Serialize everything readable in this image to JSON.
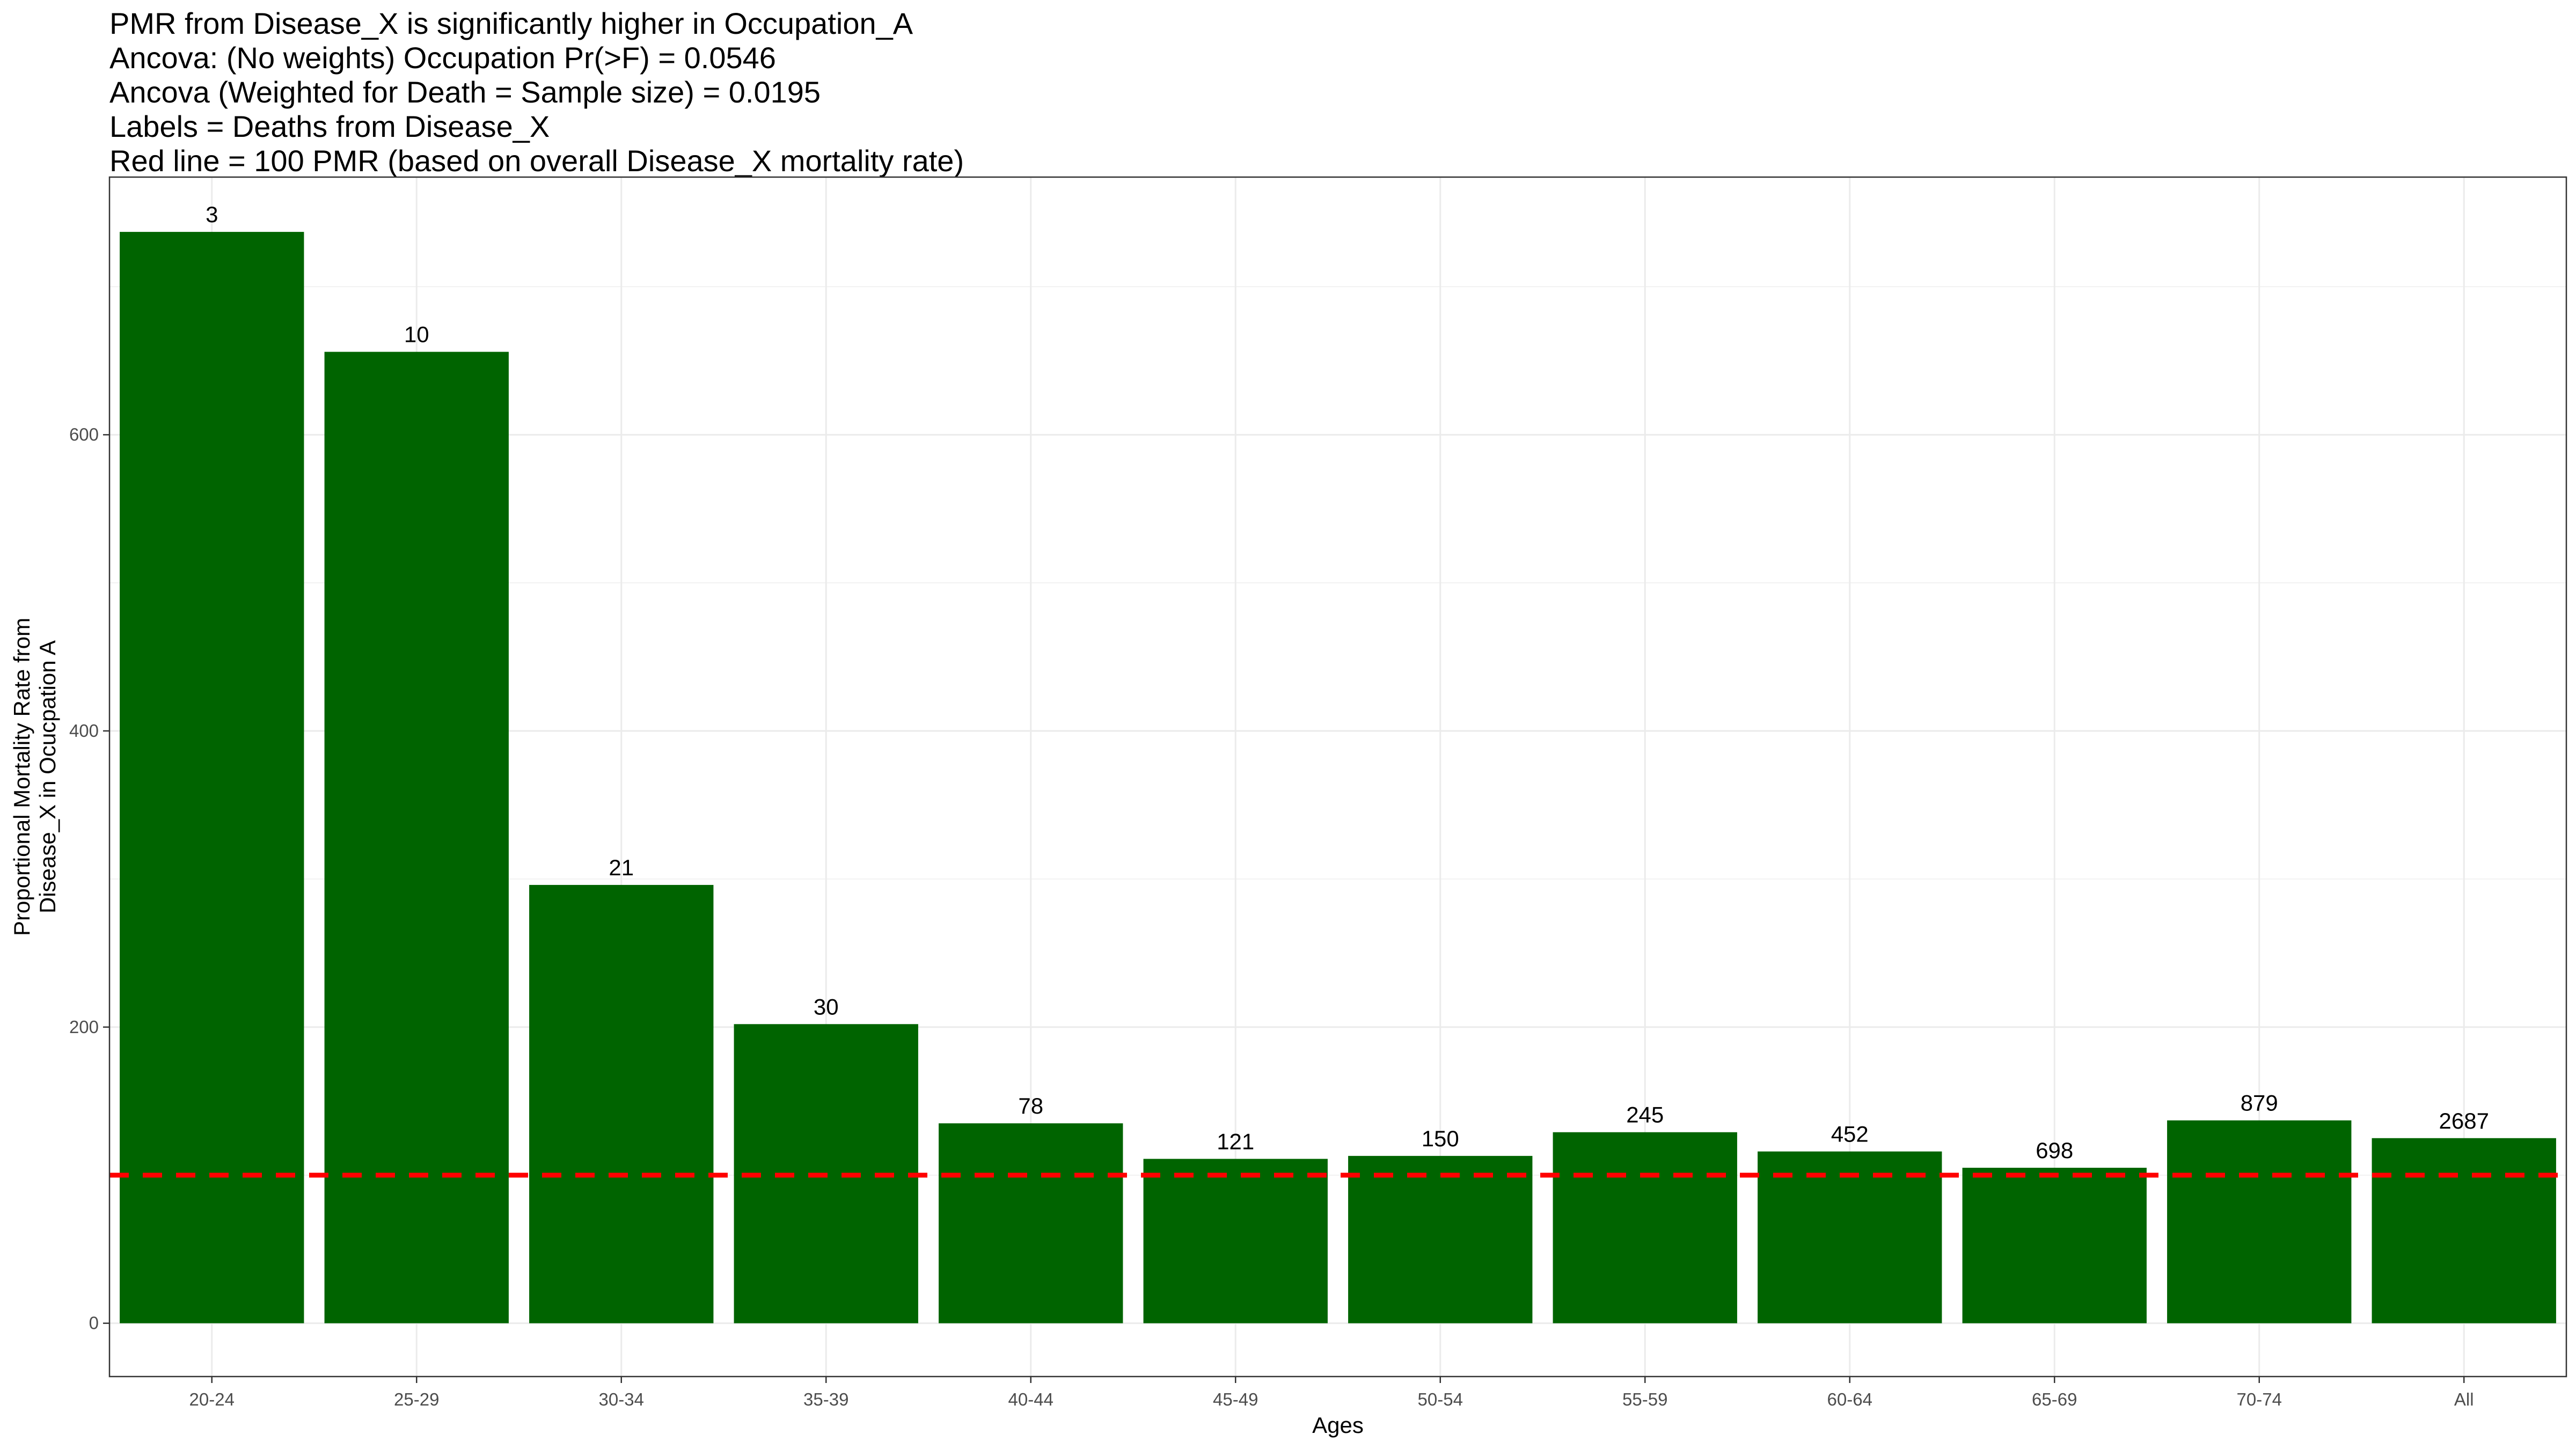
{
  "chart_data": {
    "type": "bar",
    "title_lines": [
      "PMR from Disease_X is significantly higher in Occupation_A",
      "Ancova: (No weights) Occupation Pr(>F) = 0.0546",
      "Ancova (Weighted for Death = Sample size) = 0.0195",
      "Labels = Deaths from Disease_X",
      "Red line = 100 PMR (based on overall Disease_X mortality rate)"
    ],
    "xlabel": "Ages",
    "ylabel_lines": [
      "Proportional Mortality Rate from",
      "Disease_X in Ocucpation A"
    ],
    "categories": [
      "20-24",
      "25-29",
      "30-34",
      "35-39",
      "40-44",
      "45-49",
      "50-54",
      "55-59",
      "60-64",
      "65-69",
      "70-74",
      "All"
    ],
    "values": [
      737,
      656,
      296,
      202,
      135,
      111,
      113,
      129,
      116,
      105,
      137,
      125
    ],
    "data_labels": [
      "3",
      "10",
      "21",
      "30",
      "78",
      "121",
      "150",
      "245",
      "452",
      "698",
      "879",
      "2687"
    ],
    "yticks": [
      0,
      200,
      400,
      600
    ],
    "ylim": [
      -36,
      774
    ],
    "reference_line": {
      "value": 100,
      "color": "#ff0000",
      "style": "dashed"
    },
    "bar_color": "#006400",
    "grid": true,
    "legend": "none"
  }
}
